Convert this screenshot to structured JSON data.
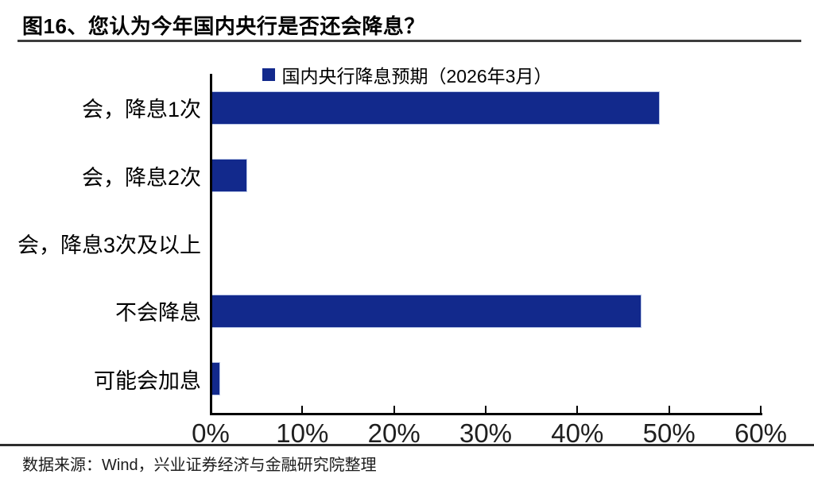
{
  "title": "图16、您认为今年国内央行是否还会降息？",
  "legend": {
    "label": "国内央行降息预期（2026年3月）",
    "color": "#12298c"
  },
  "source": "数据来源：Wind，兴业证券经济与金融研究院整理",
  "colors": {
    "bar": "#12298c",
    "bar_border": "#b7c4e6",
    "axis": "#000000"
  },
  "chart_data": {
    "type": "bar",
    "orientation": "horizontal",
    "title": "图16、您认为今年国内央行是否还会降息？",
    "series_name": "国内央行降息预期（2026年3月）",
    "categories": [
      "会，降息1次",
      "会，降息2次",
      "会，降息3次及以上",
      "不会降息",
      "可能会加息"
    ],
    "values": [
      49,
      4,
      0,
      47,
      1
    ],
    "unit": "%",
    "xlabel": "",
    "ylabel": "",
    "xlim": [
      0,
      60
    ],
    "x_ticks": [
      "0%",
      "10%",
      "20%",
      "30%",
      "40%",
      "50%",
      "60%"
    ],
    "grid": false,
    "legend_position": "top",
    "bar_color": "#12298c"
  }
}
